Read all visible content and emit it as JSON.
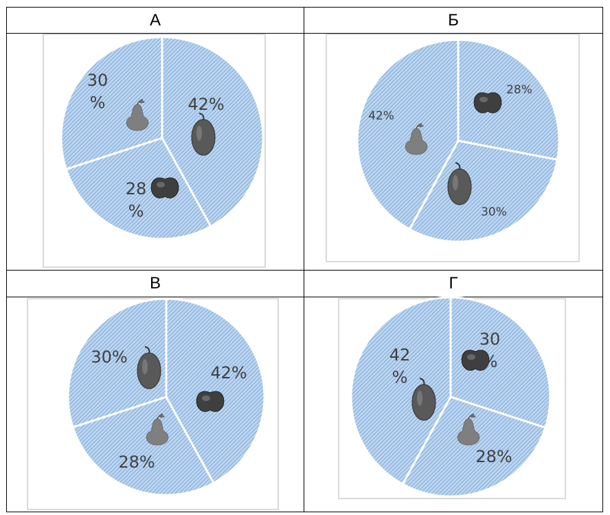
{
  "panels": [
    {
      "label": "А"
    },
    {
      "label": "Б"
    },
    {
      "label": "В"
    },
    {
      "label": "Г"
    }
  ],
  "chart_data": [
    {
      "type": "pie",
      "panel": "А",
      "slices": [
        {
          "fruit": "plum",
          "value": 42,
          "label": "42%"
        },
        {
          "fruit": "apple",
          "value": 28,
          "label": "28 %"
        },
        {
          "fruit": "pear",
          "value": 30,
          "label": "30 %"
        }
      ]
    },
    {
      "type": "pie",
      "panel": "Б",
      "slices": [
        {
          "fruit": "apple",
          "value": 28,
          "label": "28%"
        },
        {
          "fruit": "plum",
          "value": 30,
          "label": "30%"
        },
        {
          "fruit": "pear",
          "value": 42,
          "label": "42%"
        }
      ]
    },
    {
      "type": "pie",
      "panel": "В",
      "slices": [
        {
          "fruit": "apple",
          "value": 42,
          "label": "42%"
        },
        {
          "fruit": "pear",
          "value": 28,
          "label": "28%"
        },
        {
          "fruit": "plum",
          "value": 30,
          "label": "30%"
        }
      ]
    },
    {
      "type": "pie",
      "panel": "Г",
      "slices": [
        {
          "fruit": "apple",
          "value": 30,
          "label": "30 %"
        },
        {
          "fruit": "pear",
          "value": 28,
          "label": "28%"
        },
        {
          "fruit": "plum",
          "value": 42,
          "label": "42 %"
        }
      ]
    }
  ],
  "colors": {
    "slice_fill": "#bdd5ee",
    "slice_hatch": "#6f9fd8",
    "separator": "#ffffff",
    "frame": "#d9d9d9",
    "fruit": "#595959"
  },
  "icons": {
    "plum": "plum-icon",
    "apple": "apple-icon",
    "pear": "pear-icon"
  }
}
